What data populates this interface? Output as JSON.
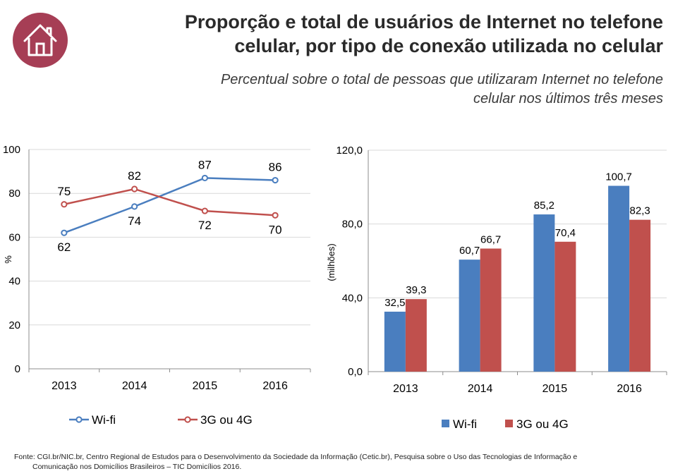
{
  "header": {
    "title_line1": "Proporção e total de usuários de Internet no telefone",
    "title_line2": "celular, por tipo de conexão utilizada no celular",
    "subtitle_line1": "Percentual sobre o total de pessoas que utilizaram Internet no telefone",
    "subtitle_line2": "celular nos últimos três meses",
    "logo_icon": "house-icon",
    "logo_color": "#a63e55"
  },
  "chart_data": [
    {
      "type": "line",
      "categories": [
        "2013",
        "2014",
        "2015",
        "2016"
      ],
      "series": [
        {
          "name": "Wi-fi",
          "values": [
            62,
            74,
            87,
            86
          ],
          "color": "#4a7ebf"
        },
        {
          "name": "3G ou 4G",
          "values": [
            75,
            82,
            72,
            70
          ],
          "color": "#c0504d"
        }
      ],
      "ylabel": "%",
      "ylim": [
        0,
        100
      ],
      "yticks": [
        "0",
        "20",
        "40",
        "60",
        "80",
        "100"
      ],
      "grid": true,
      "legend": "bottom"
    },
    {
      "type": "bar",
      "categories": [
        "2013",
        "2014",
        "2015",
        "2016"
      ],
      "series": [
        {
          "name": "Wi-fi",
          "values": [
            32.5,
            60.7,
            85.2,
            100.7
          ],
          "labels": [
            "32,5",
            "60,7",
            "85,2",
            "100,7"
          ],
          "color": "#4a7ebf"
        },
        {
          "name": "3G ou 4G",
          "values": [
            39.3,
            66.7,
            70.4,
            82.3
          ],
          "labels": [
            "39,3",
            "66,7",
            "70,4",
            "82,3"
          ],
          "color": "#c0504d"
        }
      ],
      "ylabel": "(milhões)",
      "ylim": [
        0,
        120
      ],
      "yticks": [
        "0,0",
        "40,0",
        "80,0",
        "120,0"
      ],
      "grid": true,
      "legend": "bottom"
    }
  ],
  "footer": {
    "line1": "Fonte: CGI.br/NIC.br, Centro Regional de Estudos para o Desenvolvimento da Sociedade da Informação (Cetic.br), Pesquisa sobre o Uso das Tecnologias de Informação e",
    "line2": "Comunicação nos Domicílios Brasileiros – TIC Domicílios 2016."
  }
}
